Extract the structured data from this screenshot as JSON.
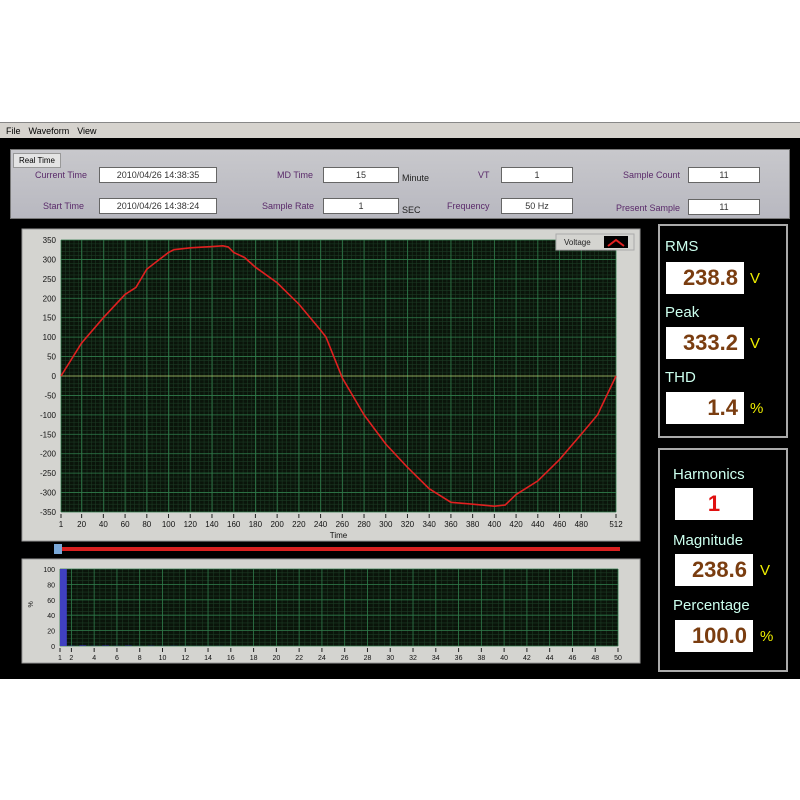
{
  "menu": [
    "File",
    "Waveform",
    "View"
  ],
  "top": {
    "tab": "Real Time",
    "current_time_label": "Current Time",
    "current_time": "2010/04/26 14:38:35",
    "start_time_label": "Start Time",
    "start_time": "2010/04/26 14:38:24",
    "md_time_label": "MD Time",
    "md_time": "15",
    "md_time_unit": "Minute",
    "sample_rate_label": "Sample Rate",
    "sample_rate": "1",
    "sample_rate_unit": "SEC",
    "vt_label": "VT",
    "vt": "1",
    "frequency_label": "Frequency",
    "frequency": "50 Hz",
    "sample_count_label": "Sample Count",
    "sample_count": "11",
    "present_sample_label": "Present Sample",
    "present_sample": "11"
  },
  "measure": {
    "rms_label": "RMS",
    "rms": "238.8",
    "rms_unit": "V",
    "peak_label": "Peak",
    "peak": "333.2",
    "peak_unit": "V",
    "thd_label": "THD",
    "thd": "1.4",
    "thd_unit": "%"
  },
  "harmonic": {
    "harmonics_label": "Harmonics",
    "harmonics": "1",
    "magnitude_label": "Magnitude",
    "magnitude": "238.6",
    "magnitude_unit": "V",
    "percentage_label": "Percentage",
    "percentage": "100.0",
    "percentage_unit": "%"
  },
  "colors": {
    "trace": "#e02020",
    "plot_bg": "#0a140a",
    "grid": "#2f7a4a",
    "bar": "#4040c0"
  },
  "chart_data": [
    {
      "type": "line",
      "xlabel": "Time",
      "ylabel": "",
      "legend": "Voltage",
      "legend_position": "top-right",
      "xlim": [
        1,
        512
      ],
      "ylim": [
        -350,
        350
      ],
      "xticks": [
        1,
        20,
        40,
        60,
        80,
        100,
        120,
        140,
        160,
        180,
        200,
        220,
        240,
        260,
        280,
        300,
        320,
        340,
        360,
        380,
        400,
        420,
        440,
        460,
        480,
        512
      ],
      "yticks": [
        350,
        300,
        250,
        200,
        150,
        100,
        50,
        0,
        -50,
        -100,
        -150,
        -200,
        -250,
        -300,
        -350
      ],
      "grid": true,
      "series": [
        {
          "name": "Voltage",
          "x": [
            1,
            20,
            40,
            60,
            70,
            80,
            100,
            105,
            120,
            140,
            150,
            155,
            160,
            170,
            180,
            200,
            220,
            240,
            245,
            260,
            280,
            300,
            320,
            340,
            360,
            380,
            400,
            410,
            420,
            440,
            460,
            480,
            495,
            512
          ],
          "y": [
            0,
            85,
            150,
            210,
            228,
            275,
            318,
            325,
            330,
            333,
            335,
            332,
            318,
            305,
            280,
            240,
            185,
            118,
            100,
            -5,
            -100,
            -175,
            -235,
            -290,
            -325,
            -330,
            -335,
            -332,
            -305,
            -270,
            -215,
            -150,
            -100,
            0
          ]
        }
      ]
    },
    {
      "type": "bar",
      "xlabel": "",
      "ylabel": "%",
      "xlim": [
        1,
        50
      ],
      "ylim": [
        0,
        100
      ],
      "grid": true,
      "xticks": [
        1,
        2,
        4,
        6,
        8,
        10,
        12,
        14,
        16,
        18,
        20,
        22,
        24,
        26,
        28,
        30,
        32,
        34,
        36,
        38,
        40,
        42,
        44,
        46,
        48,
        50
      ],
      "yticks": [
        100,
        80,
        60,
        40,
        20,
        0
      ],
      "categories": [
        1,
        2,
        3,
        4,
        5,
        6,
        7,
        8,
        9,
        10,
        11,
        12,
        13,
        14,
        15,
        16,
        17,
        18,
        19,
        20,
        21,
        22,
        23,
        24,
        25,
        26,
        27,
        28,
        29,
        30,
        31,
        32,
        33,
        34,
        35,
        36,
        37,
        38,
        39,
        40,
        41,
        42,
        43,
        44,
        45,
        46,
        47,
        48,
        49,
        50
      ],
      "values": [
        100,
        0.3,
        0.8,
        0.2,
        0.6,
        0.2,
        0.5,
        0.1,
        0.3,
        0.1,
        0.2,
        0.1,
        0.1,
        0.1,
        0.1,
        0,
        0,
        0,
        0,
        0,
        0,
        0,
        0,
        0,
        0,
        0,
        0,
        0,
        0,
        0,
        0,
        0,
        0,
        0,
        0,
        0,
        0,
        0,
        0,
        0,
        0,
        0,
        0,
        0,
        0,
        0,
        0,
        0,
        0,
        0
      ]
    }
  ]
}
